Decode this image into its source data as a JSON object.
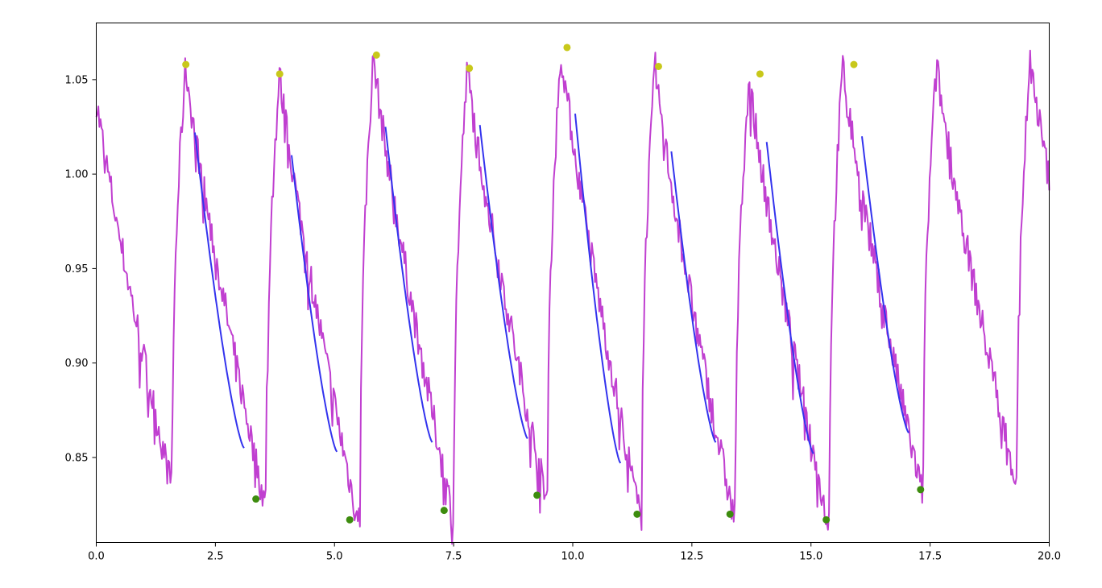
{
  "chart_data": {
    "type": "line",
    "title": "",
    "xlabel": "",
    "ylabel": "",
    "xlim": [
      0,
      20
    ],
    "ylim": [
      0.805,
      1.08
    ],
    "grid": false,
    "x_ticks": [
      0,
      2.5,
      5,
      7.5,
      10,
      12.5,
      15,
      17.5,
      20
    ],
    "x_tick_labels": [
      "0.0",
      "2.5",
      "5.0",
      "7.5",
      "10.0",
      "12.5",
      "15.0",
      "17.5",
      "20.0"
    ],
    "y_ticks": [
      0.85,
      0.9,
      0.95,
      1.0,
      1.05
    ],
    "y_tick_labels": [
      "0.85",
      "0.90",
      "0.95",
      "1.00",
      "1.05"
    ],
    "colors": {
      "signal": "#c03fd0",
      "fit": "#3333ee",
      "peaks": "#c8c81a",
      "troughs": "#3d8c0e"
    },
    "signal": {
      "period": 1.97,
      "phase": 1.88,
      "rise_fraction": 0.17,
      "peaks_y": [
        1.058,
        1.053,
        1.063,
        1.056,
        1.067,
        1.057,
        1.053,
        1.058,
        1.058,
        1.062
      ],
      "troughs_y": [
        0.838,
        0.828,
        0.817,
        0.822,
        0.83,
        0.82,
        0.82,
        0.817,
        0.833,
        0.84
      ]
    },
    "series": [
      {
        "type": "scatter",
        "x": [
          1.88,
          3.85,
          5.88,
          7.83,
          9.88,
          11.8,
          13.93,
          15.9
        ],
        "y": [
          1.058,
          1.053,
          1.063,
          1.056,
          1.067,
          1.057,
          1.053,
          1.058
        ]
      },
      {
        "type": "scatter",
        "x": [
          3.35,
          5.32,
          7.3,
          9.25,
          11.35,
          13.3,
          15.32,
          17.3
        ],
        "y": [
          0.828,
          0.817,
          0.822,
          0.83,
          0.82,
          0.82,
          0.817,
          0.833
        ]
      },
      {
        "type": "line",
        "segments": [
          {
            "x0": 2.07,
            "x1": 3.1,
            "y0": 1.022,
            "y1": 0.855
          },
          {
            "x0": 4.1,
            "x1": 5.05,
            "y0": 1.01,
            "y1": 0.853
          },
          {
            "x0": 6.07,
            "x1": 7.05,
            "y0": 1.025,
            "y1": 0.858
          },
          {
            "x0": 8.05,
            "x1": 9.05,
            "y0": 1.026,
            "y1": 0.86
          },
          {
            "x0": 10.05,
            "x1": 11.0,
            "y0": 1.032,
            "y1": 0.847
          },
          {
            "x0": 12.07,
            "x1": 13.0,
            "y0": 1.012,
            "y1": 0.858
          },
          {
            "x0": 14.07,
            "x1": 15.05,
            "y0": 1.017,
            "y1": 0.852
          },
          {
            "x0": 16.07,
            "x1": 17.05,
            "y0": 1.02,
            "y1": 0.863
          }
        ]
      }
    ]
  }
}
